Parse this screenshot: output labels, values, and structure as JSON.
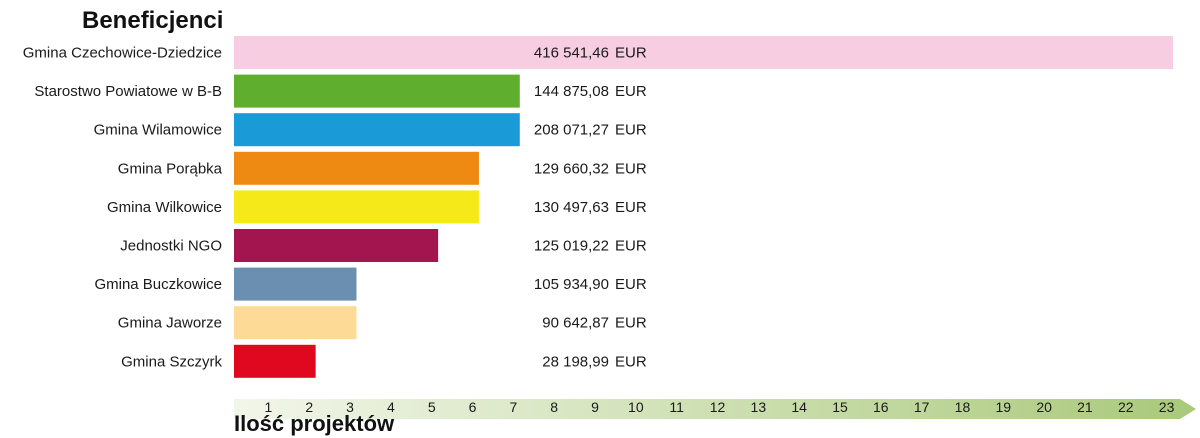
{
  "chart_data": {
    "type": "bar",
    "orientation": "horizontal",
    "title": "Beneficjenci",
    "xlabel": "Ilość projektów",
    "ylabel": "",
    "xlim": [
      0,
      23
    ],
    "x_ticks": [
      1,
      2,
      3,
      4,
      5,
      6,
      7,
      8,
      9,
      10,
      11,
      12,
      13,
      14,
      15,
      16,
      17,
      18,
      19,
      20,
      21,
      22,
      23
    ],
    "grid": false,
    "legend": "none",
    "axis_arrow_color_start": "#f2f6ea",
    "axis_arrow_color_end": "#a9c97a",
    "categories": [
      "Gmina Czechowice-Dziedzice",
      "Starostwo Powiatowe w B-B",
      "Gmina Wilamowice",
      "Gmina Porąbka",
      "Gmina Wilkowice",
      "Jednostki NGO",
      "Gmina Buczkowice",
      "Gmina Jaworze",
      "Gmina Szczyrk"
    ],
    "values": [
      23,
      7,
      7,
      6,
      6,
      5,
      3,
      3,
      2
    ],
    "amounts": [
      "416 541,46 EUR",
      "144 875,08 EUR",
      "208 071,27 EUR",
      "129 660,32 EUR",
      "130 497,63 EUR",
      "125 019,22 EUR",
      "105 934,90 EUR",
      "90 642,87 EUR",
      "28 198,99 EUR"
    ],
    "colors": [
      "#f7cde2",
      "#5fae2e",
      "#1a9ad6",
      "#ee8a12",
      "#f6e91a",
      "#a3154f",
      "#6b8fb0",
      "#fddb97",
      "#e0081e"
    ]
  }
}
